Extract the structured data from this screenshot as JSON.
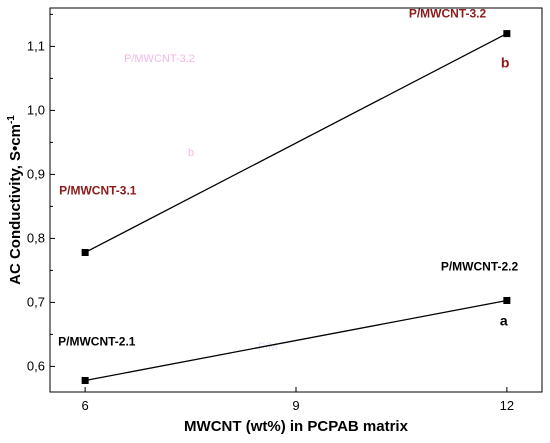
{
  "chart_data": {
    "type": "line",
    "xlabel": "MWCNT (wt%) in PCPAB matrix",
    "ylabel_main": "AC Conductivity,  S•cm",
    "ylabel_sup": "-1",
    "xlim": [
      5.5,
      12.5
    ],
    "ylim": [
      0.56,
      1.16
    ],
    "x_ticks": [
      6,
      9,
      12
    ],
    "y_ticks": [
      0.6,
      0.7,
      0.8,
      0.9,
      1.0,
      1.1
    ],
    "y_tick_labels": [
      "0,6",
      "0,7",
      "0,8",
      "0,9",
      "1,0",
      "1,1"
    ],
    "grid": false,
    "legend": "none",
    "series": [
      {
        "color": "#000000",
        "x": [
          6,
          12
        ],
        "y": [
          0.778,
          1.12
        ]
      },
      {
        "color": "#000000",
        "x": [
          6,
          12
        ],
        "y": [
          0.578,
          0.703
        ]
      }
    ],
    "annotations": [
      {
        "id": "ann-pmwcnt-3-2",
        "text": "P/MWCNT-3.2",
        "color": "#8b1a1a",
        "series": 0,
        "point": 1
      },
      {
        "id": "ann-b",
        "text": "b",
        "color": "#8b1a1a",
        "series": 0,
        "point": 1
      },
      {
        "id": "ann-pmwcnt-3-1",
        "text": "P/MWCNT-3.1",
        "color": "#8b1a1a",
        "series": 0,
        "point": 0
      },
      {
        "id": "ann-pmwcnt-2-2",
        "text": "P/MWCNT-2.2",
        "color": "#000000",
        "series": 1,
        "point": 1
      },
      {
        "id": "ann-a",
        "text": "a",
        "color": "#000000",
        "series": 1,
        "point": 1
      },
      {
        "id": "ann-pmwcnt-2-1",
        "text": "P/MWCNT-2.1",
        "color": "#000000",
        "series": 1,
        "point": 0
      }
    ],
    "ghost_texts": [
      {
        "id": "ghost-pmwcnt-3-2",
        "text": "P/MWCNT-3.2",
        "color": "#f2b8e6"
      },
      {
        "id": "ghost-b",
        "text": "b",
        "color": "#f2b8e6"
      },
      {
        "id": "ghost-pm",
        "text": "P/M",
        "color": "#e6e0f8"
      }
    ]
  }
}
